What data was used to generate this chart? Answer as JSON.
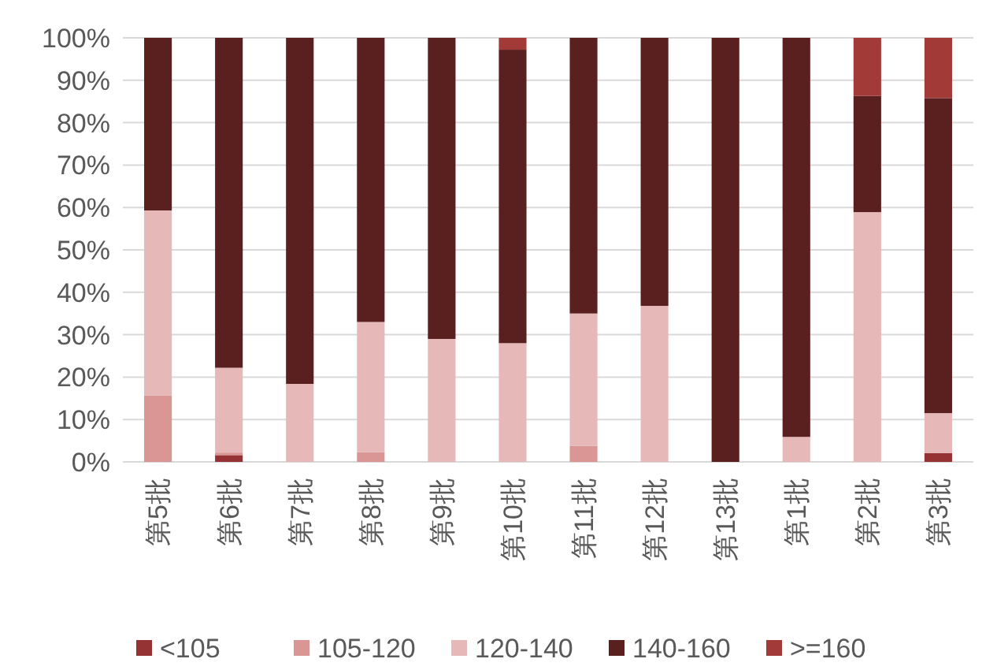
{
  "chart_data": {
    "type": "bar",
    "stacked": true,
    "categories": [
      "第5批",
      "第6批",
      "第7批",
      "第8批",
      "第9批",
      "第10批",
      "第11批",
      "第12批",
      "第13批",
      "第1批",
      "第2批",
      "第3批"
    ],
    "series": [
      {
        "name": "<105",
        "color": "#953334",
        "values": [
          0,
          1.6,
          0,
          0,
          0,
          0,
          0,
          0,
          0,
          0,
          0,
          2.1
        ]
      },
      {
        "name": "105-120",
        "color": "#d99694",
        "values": [
          15.7,
          0.6,
          0,
          2.3,
          0,
          0,
          3.8,
          0,
          0,
          0,
          0,
          0
        ]
      },
      {
        "name": "120-140",
        "color": "#e6b9b8",
        "values": [
          43.6,
          20,
          18.4,
          30.7,
          29,
          28,
          31.2,
          36.8,
          0,
          5.9,
          58.9,
          9.4
        ]
      },
      {
        "name": "140-160",
        "color": "#5a1f1f",
        "values": [
          40.7,
          77.8,
          81.6,
          67,
          71,
          69.2,
          65,
          63.2,
          100,
          94.1,
          27.4,
          74.3
        ]
      },
      {
        "name": ">=160",
        "color": "#a23b38",
        "values": [
          0,
          0,
          0,
          0,
          0,
          2.8,
          0,
          0,
          0,
          0,
          13.7,
          14.2
        ]
      }
    ],
    "ylim": [
      0,
      100
    ],
    "yticks": [
      {
        "value": 0,
        "label": "0%"
      },
      {
        "value": 10,
        "label": "10%"
      },
      {
        "value": 20,
        "label": "20%"
      },
      {
        "value": 30,
        "label": "30%"
      },
      {
        "value": 40,
        "label": "40%"
      },
      {
        "value": 50,
        "label": "50%"
      },
      {
        "value": 60,
        "label": "60%"
      },
      {
        "value": 70,
        "label": "70%"
      },
      {
        "value": 80,
        "label": "80%"
      },
      {
        "value": 90,
        "label": "90%"
      },
      {
        "value": 100,
        "label": "100%"
      }
    ],
    "grid": "y",
    "legend": "bottom"
  }
}
